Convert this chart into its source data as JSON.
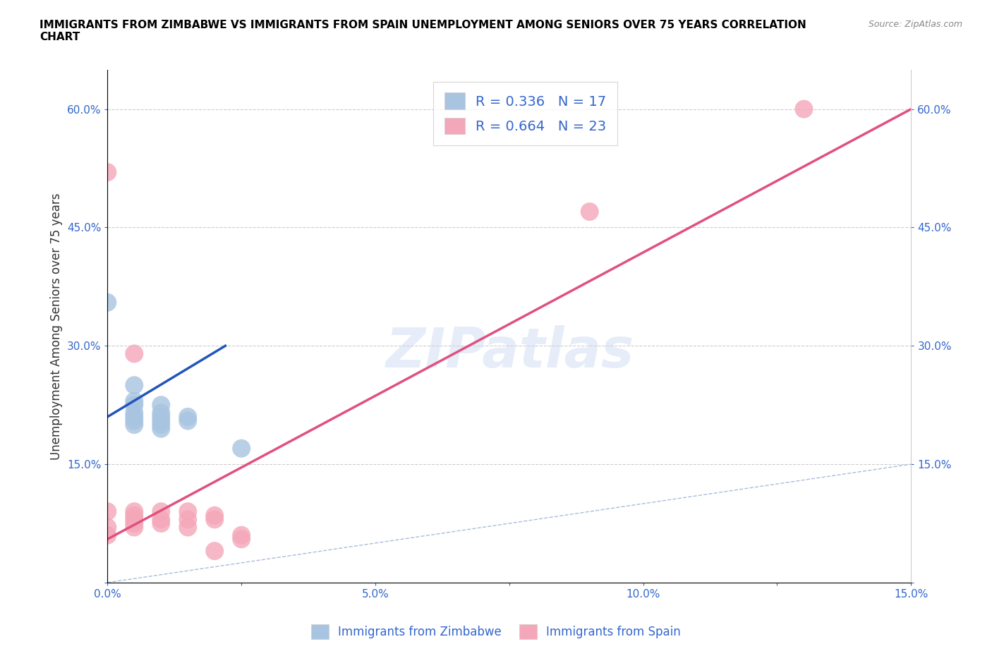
{
  "title": "IMMIGRANTS FROM ZIMBABWE VS IMMIGRANTS FROM SPAIN UNEMPLOYMENT AMONG SENIORS OVER 75 YEARS CORRELATION\nCHART",
  "source": "Source: ZipAtlas.com",
  "ylabel": "Unemployment Among Seniors over 75 years",
  "xlim": [
    0,
    0.15
  ],
  "ylim": [
    0,
    0.65
  ],
  "xticks": [
    0.0,
    0.025,
    0.05,
    0.075,
    0.1,
    0.125,
    0.15
  ],
  "xticklabels": [
    "0.0%",
    "",
    "5.0%",
    "",
    "10.0%",
    "",
    "15.0%"
  ],
  "yticks": [
    0.0,
    0.15,
    0.3,
    0.45,
    0.6
  ],
  "yticklabels": [
    "",
    "15.0%",
    "30.0%",
    "45.0%",
    "60.0%"
  ],
  "zimbabwe_color": "#a8c4e0",
  "spain_color": "#f4a7b9",
  "zimbabwe_R": 0.336,
  "zimbabwe_N": 17,
  "spain_R": 0.664,
  "spain_N": 23,
  "zimbabwe_line_color": "#2255bb",
  "spain_line_color": "#e05080",
  "diag_line_color": "#aabbdd",
  "watermark": "ZIPatlas",
  "zimbabwe_scatter": [
    [
      0.0,
      0.355
    ],
    [
      0.005,
      0.25
    ],
    [
      0.005,
      0.23
    ],
    [
      0.005,
      0.225
    ],
    [
      0.005,
      0.215
    ],
    [
      0.005,
      0.21
    ],
    [
      0.005,
      0.205
    ],
    [
      0.005,
      0.2
    ],
    [
      0.01,
      0.225
    ],
    [
      0.01,
      0.215
    ],
    [
      0.01,
      0.21
    ],
    [
      0.01,
      0.205
    ],
    [
      0.01,
      0.2
    ],
    [
      0.01,
      0.195
    ],
    [
      0.015,
      0.21
    ],
    [
      0.015,
      0.205
    ],
    [
      0.025,
      0.17
    ]
  ],
  "spain_scatter": [
    [
      0.0,
      0.52
    ],
    [
      0.0,
      0.09
    ],
    [
      0.0,
      0.07
    ],
    [
      0.0,
      0.06
    ],
    [
      0.005,
      0.29
    ],
    [
      0.005,
      0.09
    ],
    [
      0.005,
      0.085
    ],
    [
      0.005,
      0.08
    ],
    [
      0.005,
      0.075
    ],
    [
      0.005,
      0.07
    ],
    [
      0.01,
      0.09
    ],
    [
      0.01,
      0.08
    ],
    [
      0.01,
      0.075
    ],
    [
      0.015,
      0.09
    ],
    [
      0.015,
      0.08
    ],
    [
      0.015,
      0.07
    ],
    [
      0.02,
      0.085
    ],
    [
      0.02,
      0.08
    ],
    [
      0.02,
      0.04
    ],
    [
      0.025,
      0.06
    ],
    [
      0.025,
      0.055
    ],
    [
      0.09,
      0.47
    ],
    [
      0.13,
      0.6
    ]
  ],
  "zimbabwe_line_x": [
    0.0,
    0.022
  ],
  "zimbabwe_line_y": [
    0.21,
    0.3
  ],
  "spain_line_x": [
    0.0,
    0.15
  ],
  "spain_line_y": [
    0.055,
    0.6
  ]
}
